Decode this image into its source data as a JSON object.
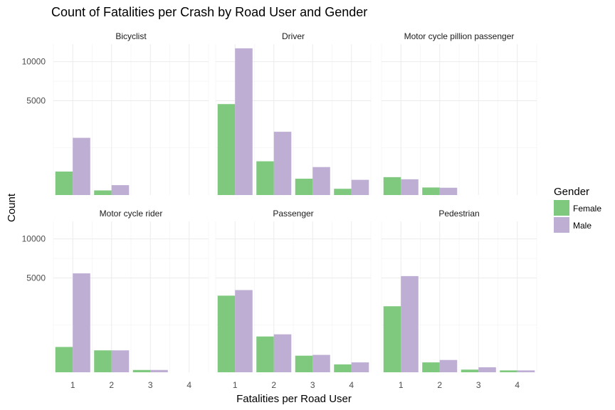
{
  "chart_data": {
    "type": "bar",
    "title": "Count of Fatalities per Crash by Road User and Gender",
    "xlabel": "Fatalities per Road User",
    "ylabel": "Count",
    "y_scale": "sqrt",
    "grid": true,
    "legend": {
      "title": "Gender",
      "placement": "right"
    },
    "categories": [
      "1",
      "2",
      "3",
      "4"
    ],
    "y_ticks": [
      5000,
      10000
    ],
    "ylim": [
      0,
      12800
    ],
    "colors": {
      "Female": "#7fc97f",
      "Male": "#beaed4"
    },
    "facets": [
      {
        "name": "Bicyclist",
        "series": [
          {
            "name": "Female",
            "values": [
              310,
              12,
              0,
              0
            ]
          },
          {
            "name": "Male",
            "values": [
              1840,
              55,
              0,
              0
            ]
          }
        ]
      },
      {
        "name": "Driver",
        "series": [
          {
            "name": "Female",
            "values": [
              4650,
              640,
              150,
              22
            ]
          },
          {
            "name": "Male",
            "values": [
              12100,
              2250,
              440,
              130
            ]
          }
        ]
      },
      {
        "name": "Motor cycle pillion passenger",
        "series": [
          {
            "name": "Female",
            "values": [
              180,
              32,
              0,
              0
            ]
          },
          {
            "name": "Male",
            "values": [
              140,
              30,
              0,
              0
            ]
          }
        ]
      },
      {
        "name": "Motor cycle rider",
        "series": [
          {
            "name": "Female",
            "values": [
              360,
              270,
              3,
              0
            ]
          },
          {
            "name": "Male",
            "values": [
              5500,
              270,
              3,
              0
            ]
          }
        ]
      },
      {
        "name": "Passenger",
        "series": [
          {
            "name": "Female",
            "values": [
              3300,
              720,
              155,
              35
            ]
          },
          {
            "name": "Male",
            "values": [
              3800,
              810,
              170,
              55
            ]
          }
        ]
      },
      {
        "name": "Pedestrian",
        "series": [
          {
            "name": "Female",
            "values": [
              2450,
              55,
              4,
              2
            ]
          },
          {
            "name": "Male",
            "values": [
              5200,
              85,
              14,
              2
            ]
          }
        ]
      }
    ]
  }
}
